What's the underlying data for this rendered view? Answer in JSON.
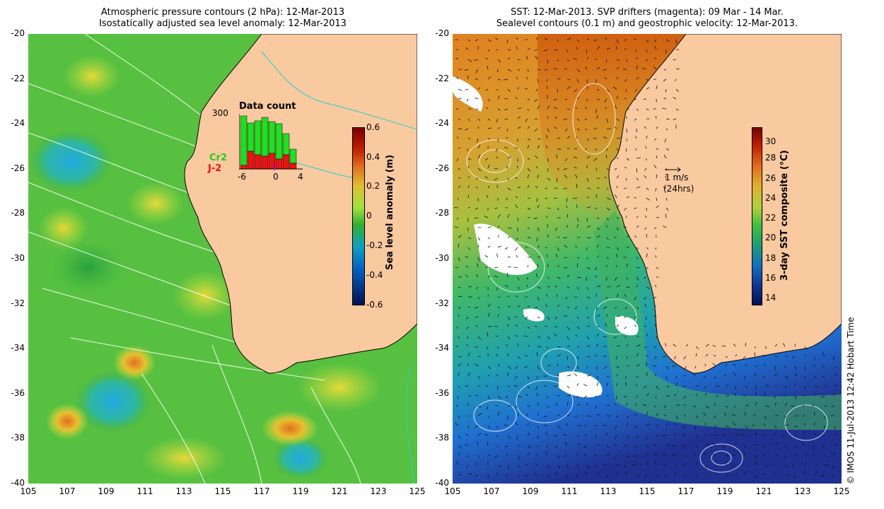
{
  "left_panel": {
    "title_line1": "Atmospheric pressure contours (2 hPa): 12-Mar-2013",
    "title_line2": "Isostatically adjusted sea level anomaly: 12-Mar-2013",
    "colorbar": {
      "label": "Sea level anomaly (m)",
      "ticks": [
        "0.6",
        "0.4",
        "0.2",
        "0",
        "-0.2",
        "-0.4",
        "-0.6"
      ],
      "colors": [
        "#7a0000",
        "#e0a000",
        "#a8e038",
        "#30b030",
        "#10a0c0",
        "#0040a0",
        "#001050"
      ]
    },
    "histogram": {
      "title": "Data count",
      "ymax_label": "300",
      "x_labels": [
        "-6",
        "0",
        "4"
      ],
      "legend_cr2": "Cr2",
      "legend_j2": "J-2",
      "cr2_color": "#22dd22",
      "j2_color": "#ee1111"
    }
  },
  "right_panel": {
    "title_line1": "SST: 12-Mar-2013. SVP drifters (magenta): 09 Mar - 14 Mar.",
    "title_line2": "Sealevel contours (0.1 m) and geostrophic velocity: 12-Mar-2013.",
    "colorbar": {
      "label": "3-day SST composite (°C)",
      "ticks": [
        "30",
        "28",
        "26",
        "24",
        "22",
        "20",
        "18",
        "16",
        "14"
      ],
      "colors": [
        "#7a0000",
        "#d05000",
        "#e0a000",
        "#c8d040",
        "#40c040",
        "#20a070",
        "#1070c0",
        "#103090",
        "#001050"
      ]
    },
    "scale_arrow_label1": "1 m/s",
    "scale_arrow_label2": "(24hrs)"
  },
  "axes": {
    "y_labels": [
      "-20",
      "-22",
      "-24",
      "-26",
      "-28",
      "-30",
      "-32",
      "-34",
      "-36",
      "-38",
      "-40"
    ],
    "x_labels": [
      "105",
      "107",
      "109",
      "111",
      "113",
      "115",
      "117",
      "119",
      "121",
      "123",
      "125"
    ]
  },
  "copyright": "© IMOS 11-Jul-2013 12:42 Hobart Time",
  "colors": {
    "land": "#f9c9a0",
    "coast": "#000000"
  }
}
